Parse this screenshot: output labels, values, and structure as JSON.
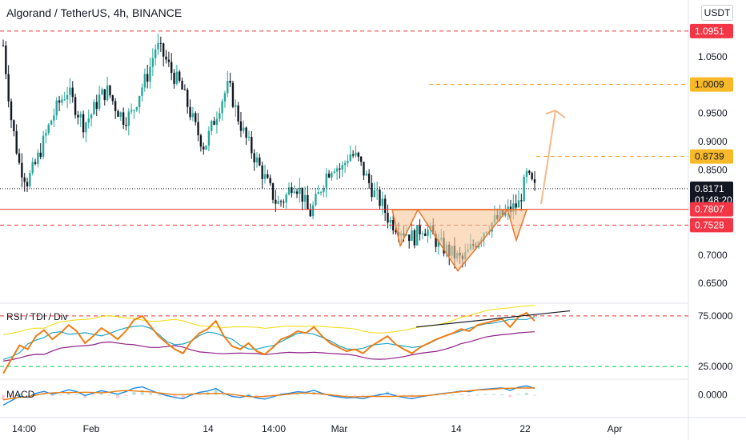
{
  "header": {
    "title": "Algorand / TetherUS, 4h, BINANCE",
    "unit_button": "USDT"
  },
  "colors": {
    "up": "#26a69a",
    "down": "#131722",
    "rsi_line": "#ef7d11",
    "tdi_fast": "#1ba6c8",
    "tdi_slow": "#8e1e86",
    "band_upper": "#f5d90a",
    "band_lower": "#f5d90a",
    "resistance": "#e53935",
    "target": "#f5a623",
    "green_level": "#00c853",
    "pattern_fill": "#f9c69a",
    "pattern_stroke": "#e8772e",
    "macd": "#1e88e5",
    "signal": "#ef7d11"
  },
  "panes": {
    "rsi_label": "RSI / TDI / Div",
    "macd_label": "MACD"
  },
  "chart_data": {
    "type": "candlestick",
    "symbol": "Algorand / TetherUS",
    "timeframe": "4h",
    "exchange": "BINANCE",
    "price_axis": {
      "ticks": [
        "1.0500",
        "0.9500",
        "0.9000",
        "0.8500",
        "0.7000",
        "0.6500"
      ],
      "range": [
        0.615,
        1.15
      ]
    },
    "time_axis": {
      "ticks": [
        "14:00",
        "Feb",
        "14",
        "14:00",
        "Mar",
        "14",
        "22",
        "Apr"
      ]
    },
    "price_series": [
      1.07,
      0.94,
      0.86,
      0.83,
      0.86,
      0.9,
      0.94,
      0.97,
      0.99,
      0.96,
      0.93,
      0.95,
      0.98,
      0.99,
      0.96,
      0.94,
      0.95,
      0.99,
      1.02,
      1.07,
      1.05,
      1.02,
      1.0,
      0.96,
      0.92,
      0.89,
      0.93,
      0.97,
      1.0,
      0.95,
      0.91,
      0.88,
      0.85,
      0.82,
      0.79,
      0.8,
      0.83,
      0.81,
      0.77,
      0.8,
      0.84,
      0.86,
      0.85,
      0.88,
      0.87,
      0.84,
      0.81,
      0.79,
      0.76,
      0.75,
      0.74,
      0.73,
      0.75,
      0.74,
      0.72,
      0.71,
      0.7,
      0.69,
      0.71,
      0.73,
      0.75,
      0.76,
      0.77,
      0.78,
      0.79,
      0.84,
      0.817
    ],
    "levels": [
      {
        "label": "1.0951",
        "value": 1.0951,
        "style": "dashed",
        "color": "red"
      },
      {
        "label": "1.0009",
        "value": 1.0009,
        "style": "dashed",
        "color": "orange"
      },
      {
        "label": "0.8739",
        "value": 0.8739,
        "style": "dashed",
        "color": "orange"
      },
      {
        "label": "0.8171",
        "value": 0.8171,
        "style": "dotted",
        "color": "black",
        "sub": "01:48:20"
      },
      {
        "label": "0.7807",
        "value": 0.7807,
        "style": "solid",
        "color": "red"
      },
      {
        "label": "0.7528",
        "value": 0.7528,
        "style": "dashed",
        "color": "red"
      }
    ],
    "pattern": {
      "name": "inverse head and shoulders",
      "neckline": 0.78,
      "left_shoulder": 0.716,
      "head": 0.672,
      "right_shoulder": 0.726
    },
    "projection": {
      "from": 0.79,
      "to": 0.955
    },
    "rsi": {
      "axis_ticks": [
        "75.0000",
        "25.0000"
      ],
      "levels": [
        75,
        25
      ],
      "range": [
        14,
        86
      ],
      "values": [
        18,
        32,
        46,
        42,
        55,
        61,
        52,
        58,
        66,
        60,
        48,
        55,
        63,
        58,
        52,
        60,
        71,
        75,
        65,
        55,
        48,
        42,
        38,
        50,
        58,
        62,
        70,
        55,
        45,
        42,
        48,
        40,
        37,
        44,
        52,
        55,
        60,
        58,
        64,
        55,
        48,
        44,
        40,
        42,
        38,
        45,
        50,
        55,
        47,
        42,
        38,
        44,
        48,
        52,
        55,
        58,
        62,
        60,
        66,
        68,
        70,
        72,
        64,
        74,
        78,
        70
      ]
    },
    "macd": {
      "axis_ticks": [
        "0.0000"
      ],
      "range": [
        -0.03,
        0.02
      ]
    }
  }
}
